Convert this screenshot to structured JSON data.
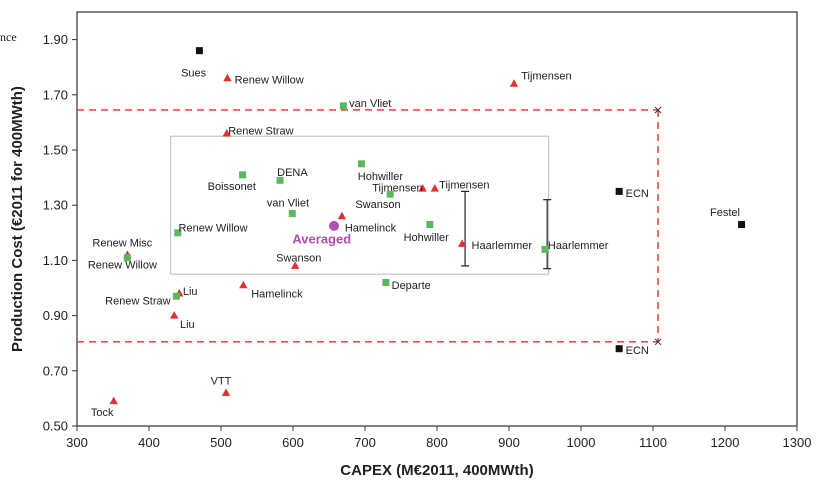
{
  "page": {
    "fragment_text": "nce"
  },
  "chart_data": {
    "type": "scatter",
    "title": "",
    "xlabel": "CAPEX (M€2011, 400MWth)",
    "ylabel": "Production Cost (€2011 for 400MWth)",
    "xlim": [
      300,
      1300
    ],
    "ylim": [
      0.5,
      2.0
    ],
    "xticks": [
      300,
      400,
      500,
      600,
      700,
      800,
      900,
      1000,
      1100,
      1200,
      1300
    ],
    "yticks": [
      0.5,
      0.7,
      0.9,
      1.1,
      1.3,
      1.5,
      1.7,
      1.9
    ],
    "ytick_labels": [
      "0.50",
      "0.70",
      "0.90",
      "1.10",
      "1.30",
      "1.50",
      "1.70",
      "1.90"
    ],
    "grid": false,
    "legend": "none",
    "colors": {
      "red": "#e03030",
      "green": "#5cb85c",
      "black": "#111111",
      "purple": "#b04fb0",
      "dashed": "#e03030",
      "inset": "#bbbbbb"
    },
    "points": [
      {
        "label": "Sues",
        "x": 470,
        "y": 1.86,
        "marker": "square",
        "color": "black",
        "lx": 462,
        "ly": 1.78,
        "anchor": "middle"
      },
      {
        "label": "Renew Willow",
        "x": 509,
        "y": 1.76,
        "marker": "triangle",
        "color": "red",
        "lx": 519,
        "ly": 1.755,
        "anchor": "start"
      },
      {
        "label": "Tijmensen",
        "x": 907,
        "y": 1.74,
        "marker": "triangle",
        "color": "red",
        "lx": 917,
        "ly": 1.77,
        "anchor": "start"
      },
      {
        "label": "van Vliet",
        "x": 670,
        "y": 1.66,
        "marker": "square",
        "color": "green",
        "lx": 678,
        "ly": 1.67,
        "anchor": "start"
      },
      {
        "label": "Renew Straw",
        "x": 508,
        "y": 1.56,
        "marker": "triangle",
        "color": "red",
        "lx": 510,
        "ly": 1.57,
        "anchor": "start"
      },
      {
        "label": "Boissonet",
        "x": 530,
        "y": 1.41,
        "marker": "square",
        "color": "green",
        "lx": 515,
        "ly": 1.37,
        "anchor": "middle"
      },
      {
        "label": "DENA",
        "x": 582,
        "y": 1.39,
        "marker": "square",
        "color": "green",
        "lx": 578,
        "ly": 1.42,
        "anchor": "start"
      },
      {
        "label": "Hohwiller",
        "x": 695,
        "y": 1.45,
        "marker": "square",
        "color": "green",
        "lx": 690,
        "ly": 1.405,
        "anchor": "start"
      },
      {
        "label": "Tijmensen",
        "x": 780,
        "y": 1.36,
        "marker": "triangle",
        "color": "red",
        "lx": 780,
        "ly": 1.365,
        "anchor": "end"
      },
      {
        "label": "Tijmensen",
        "x": 797,
        "y": 1.36,
        "marker": "triangle",
        "color": "red",
        "lx": 803,
        "ly": 1.375,
        "anchor": "start"
      },
      {
        "label": "Swanson",
        "x": 735,
        "y": 1.34,
        "marker": "square",
        "color": "green",
        "lx": 718,
        "ly": 1.305,
        "anchor": "middle"
      },
      {
        "label": "van Vliet",
        "x": 599,
        "y": 1.27,
        "marker": "square",
        "color": "green",
        "lx": 593,
        "ly": 1.31,
        "anchor": "middle"
      },
      {
        "label": "Hamelinck",
        "x": 668,
        "y": 1.26,
        "marker": "triangle",
        "color": "red",
        "lx": 672,
        "ly": 1.22,
        "anchor": "start"
      },
      {
        "label": "Hohwiller",
        "x": 790,
        "y": 1.23,
        "marker": "square",
        "color": "green",
        "lx": 785,
        "ly": 1.185,
        "anchor": "middle"
      },
      {
        "label": "Renew Willow",
        "x": 440,
        "y": 1.2,
        "marker": "square",
        "color": "green",
        "lx": 441,
        "ly": 1.22,
        "anchor": "start"
      },
      {
        "label": "Haarlemmer",
        "x": 835,
        "y": 1.16,
        "marker": "triangle",
        "color": "red",
        "lx": 848,
        "ly": 1.155,
        "anchor": "start"
      },
      {
        "label": "Haarlemmer",
        "x": 950,
        "y": 1.14,
        "marker": "square",
        "color": "green",
        "lx": 954,
        "ly": 1.155,
        "anchor": "start"
      },
      {
        "label": "Renew Misc",
        "x": 370,
        "y": 1.12,
        "marker": "triangle",
        "color": "red",
        "lx": 363,
        "ly": 1.165,
        "anchor": "middle"
      },
      {
        "label": "Renew Willow",
        "x": 370,
        "y": 1.11,
        "marker": "square",
        "color": "green",
        "lx": 363,
        "ly": 1.085,
        "anchor": "middle"
      },
      {
        "label": "Swanson",
        "x": 603,
        "y": 1.08,
        "marker": "triangle",
        "color": "red",
        "lx": 608,
        "ly": 1.11,
        "anchor": "middle"
      },
      {
        "label": "Departe",
        "x": 729,
        "y": 1.02,
        "marker": "square",
        "color": "green",
        "lx": 737,
        "ly": 1.01,
        "anchor": "start"
      },
      {
        "label": "Hamelinck",
        "x": 531,
        "y": 1.01,
        "marker": "triangle",
        "color": "red",
        "lx": 542,
        "ly": 0.98,
        "anchor": "start"
      },
      {
        "label": "Liu",
        "x": 442,
        "y": 0.98,
        "marker": "triangle",
        "color": "red",
        "lx": 447,
        "ly": 0.99,
        "anchor": "start"
      },
      {
        "label": "Renew Straw",
        "x": 438,
        "y": 0.97,
        "marker": "square",
        "color": "green",
        "lx": 430,
        "ly": 0.955,
        "anchor": "end"
      },
      {
        "label": "Liu",
        "x": 435,
        "y": 0.9,
        "marker": "triangle",
        "color": "red",
        "lx": 443,
        "ly": 0.87,
        "anchor": "start"
      },
      {
        "label": "ECN",
        "x": 1053,
        "y": 1.35,
        "marker": "square",
        "color": "black",
        "lx": 1062,
        "ly": 1.345,
        "anchor": "start"
      },
      {
        "label": "ECN",
        "x": 1053,
        "y": 0.78,
        "marker": "square",
        "color": "black",
        "lx": 1062,
        "ly": 0.775,
        "anchor": "start"
      },
      {
        "label": "Festel",
        "x": 1223,
        "y": 1.23,
        "marker": "square",
        "color": "black",
        "lx": 1200,
        "ly": 1.275,
        "anchor": "middle"
      },
      {
        "label": "VTT",
        "x": 507,
        "y": 0.62,
        "marker": "triangle",
        "color": "red",
        "lx": 500,
        "ly": 0.665,
        "anchor": "middle"
      },
      {
        "label": "Tock",
        "x": 351,
        "y": 0.59,
        "marker": "triangle",
        "color": "red",
        "lx": 335,
        "ly": 0.55,
        "anchor": "middle"
      }
    ],
    "averaged": {
      "label": "Averaged",
      "x": 657,
      "y": 1.225,
      "lx": 640,
      "ly": 1.18
    },
    "error_bars": [
      {
        "x": 839,
        "ylow": 1.08,
        "yhigh": 1.35
      },
      {
        "x": 953,
        "ylow": 1.07,
        "yhigh": 1.32
      }
    ],
    "inset_box": {
      "x0": 430,
      "x1": 955,
      "y0": 1.05,
      "y1": 1.55
    },
    "dashed_box": {
      "x0": 300,
      "x1": 1107,
      "y0": 0.805,
      "y1": 1.645
    }
  }
}
